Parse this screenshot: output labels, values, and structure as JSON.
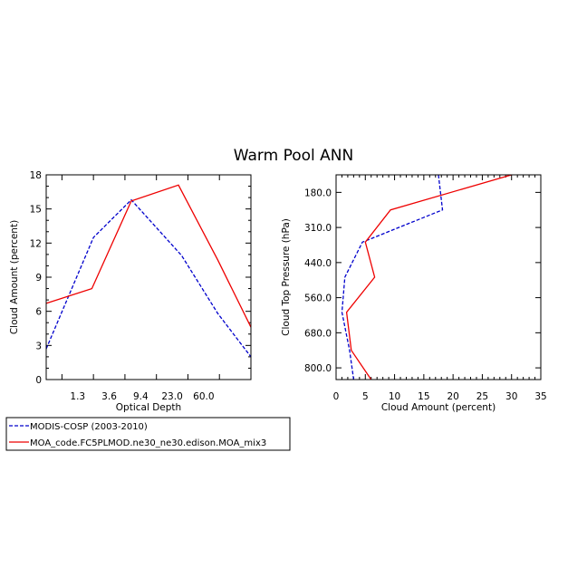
{
  "title": "Warm Pool ANN",
  "colors": {
    "series1": "#0000cc",
    "series2": "#ee0000",
    "axis": "#000000"
  },
  "legend": {
    "entries": [
      {
        "label": "MODIS-COSP (2003-2010)",
        "style": "dashed",
        "color": "#0000cc"
      },
      {
        "label": "MOA_code.FC5PLMOD.ne30_ne30.edison.MOA_mix3",
        "style": "solid",
        "color": "#ee0000"
      }
    ]
  },
  "chart_data": [
    {
      "type": "line",
      "xlabel": "Optical Depth",
      "ylabel": "Cloud Amount (percent)",
      "x_index_range": [
        0.5,
        7.0
      ],
      "ylim": [
        0,
        18
      ],
      "y_ticks": [
        "0",
        "3",
        "6",
        "9",
        "12",
        "15",
        "18"
      ],
      "x_tick_labels": [
        "1.3",
        "3.6",
        "9.4",
        "23.0",
        "60.0"
      ],
      "x_tick_index": [
        1,
        2,
        3,
        4,
        5,
        6
      ],
      "x_label_index": [
        1.5,
        2.5,
        3.5,
        4.5,
        5.5
      ],
      "series": [
        {
          "name": "MODIS-COSP (2003-2010)",
          "x_index": [
            0.5,
            2.0,
            3.2,
            4.8,
            5.95,
            7.0
          ],
          "values": [
            2.7,
            12.5,
            15.8,
            10.9,
            5.8,
            2.0
          ]
        },
        {
          "name": "MOA_code.FC5PLMOD.ne30_ne30.edison.MOA_mix3",
          "x_index": [
            0.5,
            1.95,
            3.2,
            4.7,
            5.95,
            7.0
          ],
          "values": [
            6.7,
            8.0,
            15.7,
            17.1,
            10.5,
            4.6
          ]
        }
      ]
    },
    {
      "type": "line",
      "xlabel": "Cloud Amount (percent)",
      "ylabel": "Cloud Top Pressure (hPa)",
      "xlim": [
        0,
        35
      ],
      "x_ticks": [
        "0",
        "5",
        "10",
        "15",
        "20",
        "25",
        "30",
        "35"
      ],
      "y_index_range": [
        0,
        7
      ],
      "y_tick_labels": [
        "180.0",
        "310.0",
        "440.0",
        "560.0",
        "680.0",
        "800.0"
      ],
      "y_tick_index": [
        0.6,
        1.8,
        3.0,
        4.2,
        5.4,
        6.6
      ],
      "series": [
        {
          "name": "MODIS-COSP (2003-2010)",
          "values": [
            17.5,
            18.2,
            4.5,
            1.5,
            1.0,
            2.3,
            3.0
          ],
          "y_index": [
            0.0,
            1.2,
            2.3,
            3.5,
            4.7,
            6.0,
            7.0
          ]
        },
        {
          "name": "MOA_code.FC5PLMOD.ne30_ne30.edison.MOA_mix3",
          "values": [
            30.0,
            9.3,
            5.0,
            6.6,
            1.8,
            2.6,
            6.0
          ],
          "y_index": [
            0.0,
            1.2,
            2.3,
            3.5,
            4.7,
            6.0,
            7.0
          ]
        }
      ]
    }
  ]
}
